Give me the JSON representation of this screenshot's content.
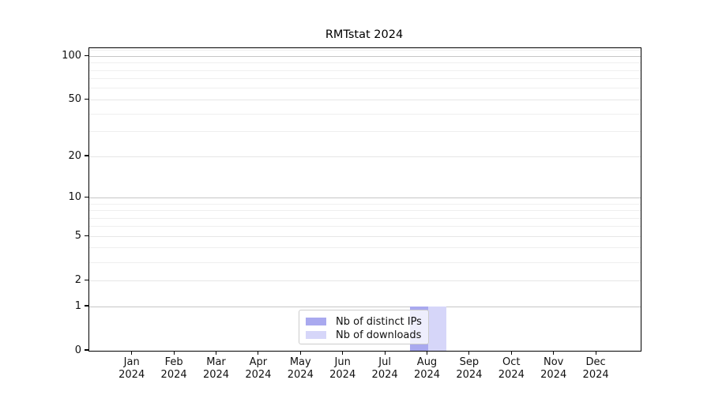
{
  "page": {
    "background": "#ffffff"
  },
  "chart": {
    "title": "RMTstat 2024",
    "legend": {
      "position": "lower center",
      "entries": [
        {
          "label": "Nb of distinct IPs",
          "color": "#a9a9ef"
        },
        {
          "label": "Nb of downloads",
          "color": "#d6d6f9"
        }
      ]
    }
  },
  "chart_data": {
    "type": "bar",
    "title": "RMTstat 2024",
    "categories": [
      "Jan",
      "Feb",
      "Mar",
      "Apr",
      "May",
      "Jun",
      "Jul",
      "Aug",
      "Sep",
      "Oct",
      "Nov",
      "Dec"
    ],
    "year_label": "2024",
    "series": [
      {
        "name": "Nb of distinct IPs",
        "color": "#a9a9ef",
        "values": [
          0,
          0,
          0,
          0,
          0,
          0,
          0,
          1,
          0,
          0,
          0,
          0
        ]
      },
      {
        "name": "Nb of downloads",
        "color": "#d6d6f9",
        "values": [
          0,
          0,
          0,
          0,
          0,
          0,
          0,
          1,
          0,
          0,
          0,
          0
        ]
      }
    ],
    "xlabel": "",
    "ylabel": "",
    "yscale": "log1p",
    "ylim": [
      0,
      113.6
    ],
    "yticks": [
      0,
      1,
      2,
      5,
      10,
      20,
      50,
      100
    ],
    "ytick_labels": [
      "0",
      "1",
      "2",
      "5",
      "10",
      "20",
      "50",
      "100"
    ],
    "yticks_minor": [
      3,
      4,
      6,
      7,
      8,
      9,
      30,
      40,
      60,
      70,
      80,
      90,
      110
    ],
    "grid": "horizontal",
    "legend_position": "lower center"
  },
  "colors": {
    "grid_decade": "#c6c6c6",
    "grid_sub": "#e6e6e6",
    "grid_minor": "#efefef",
    "spine": "#000000",
    "text": "#111111",
    "legend_border": "#cccccc"
  }
}
